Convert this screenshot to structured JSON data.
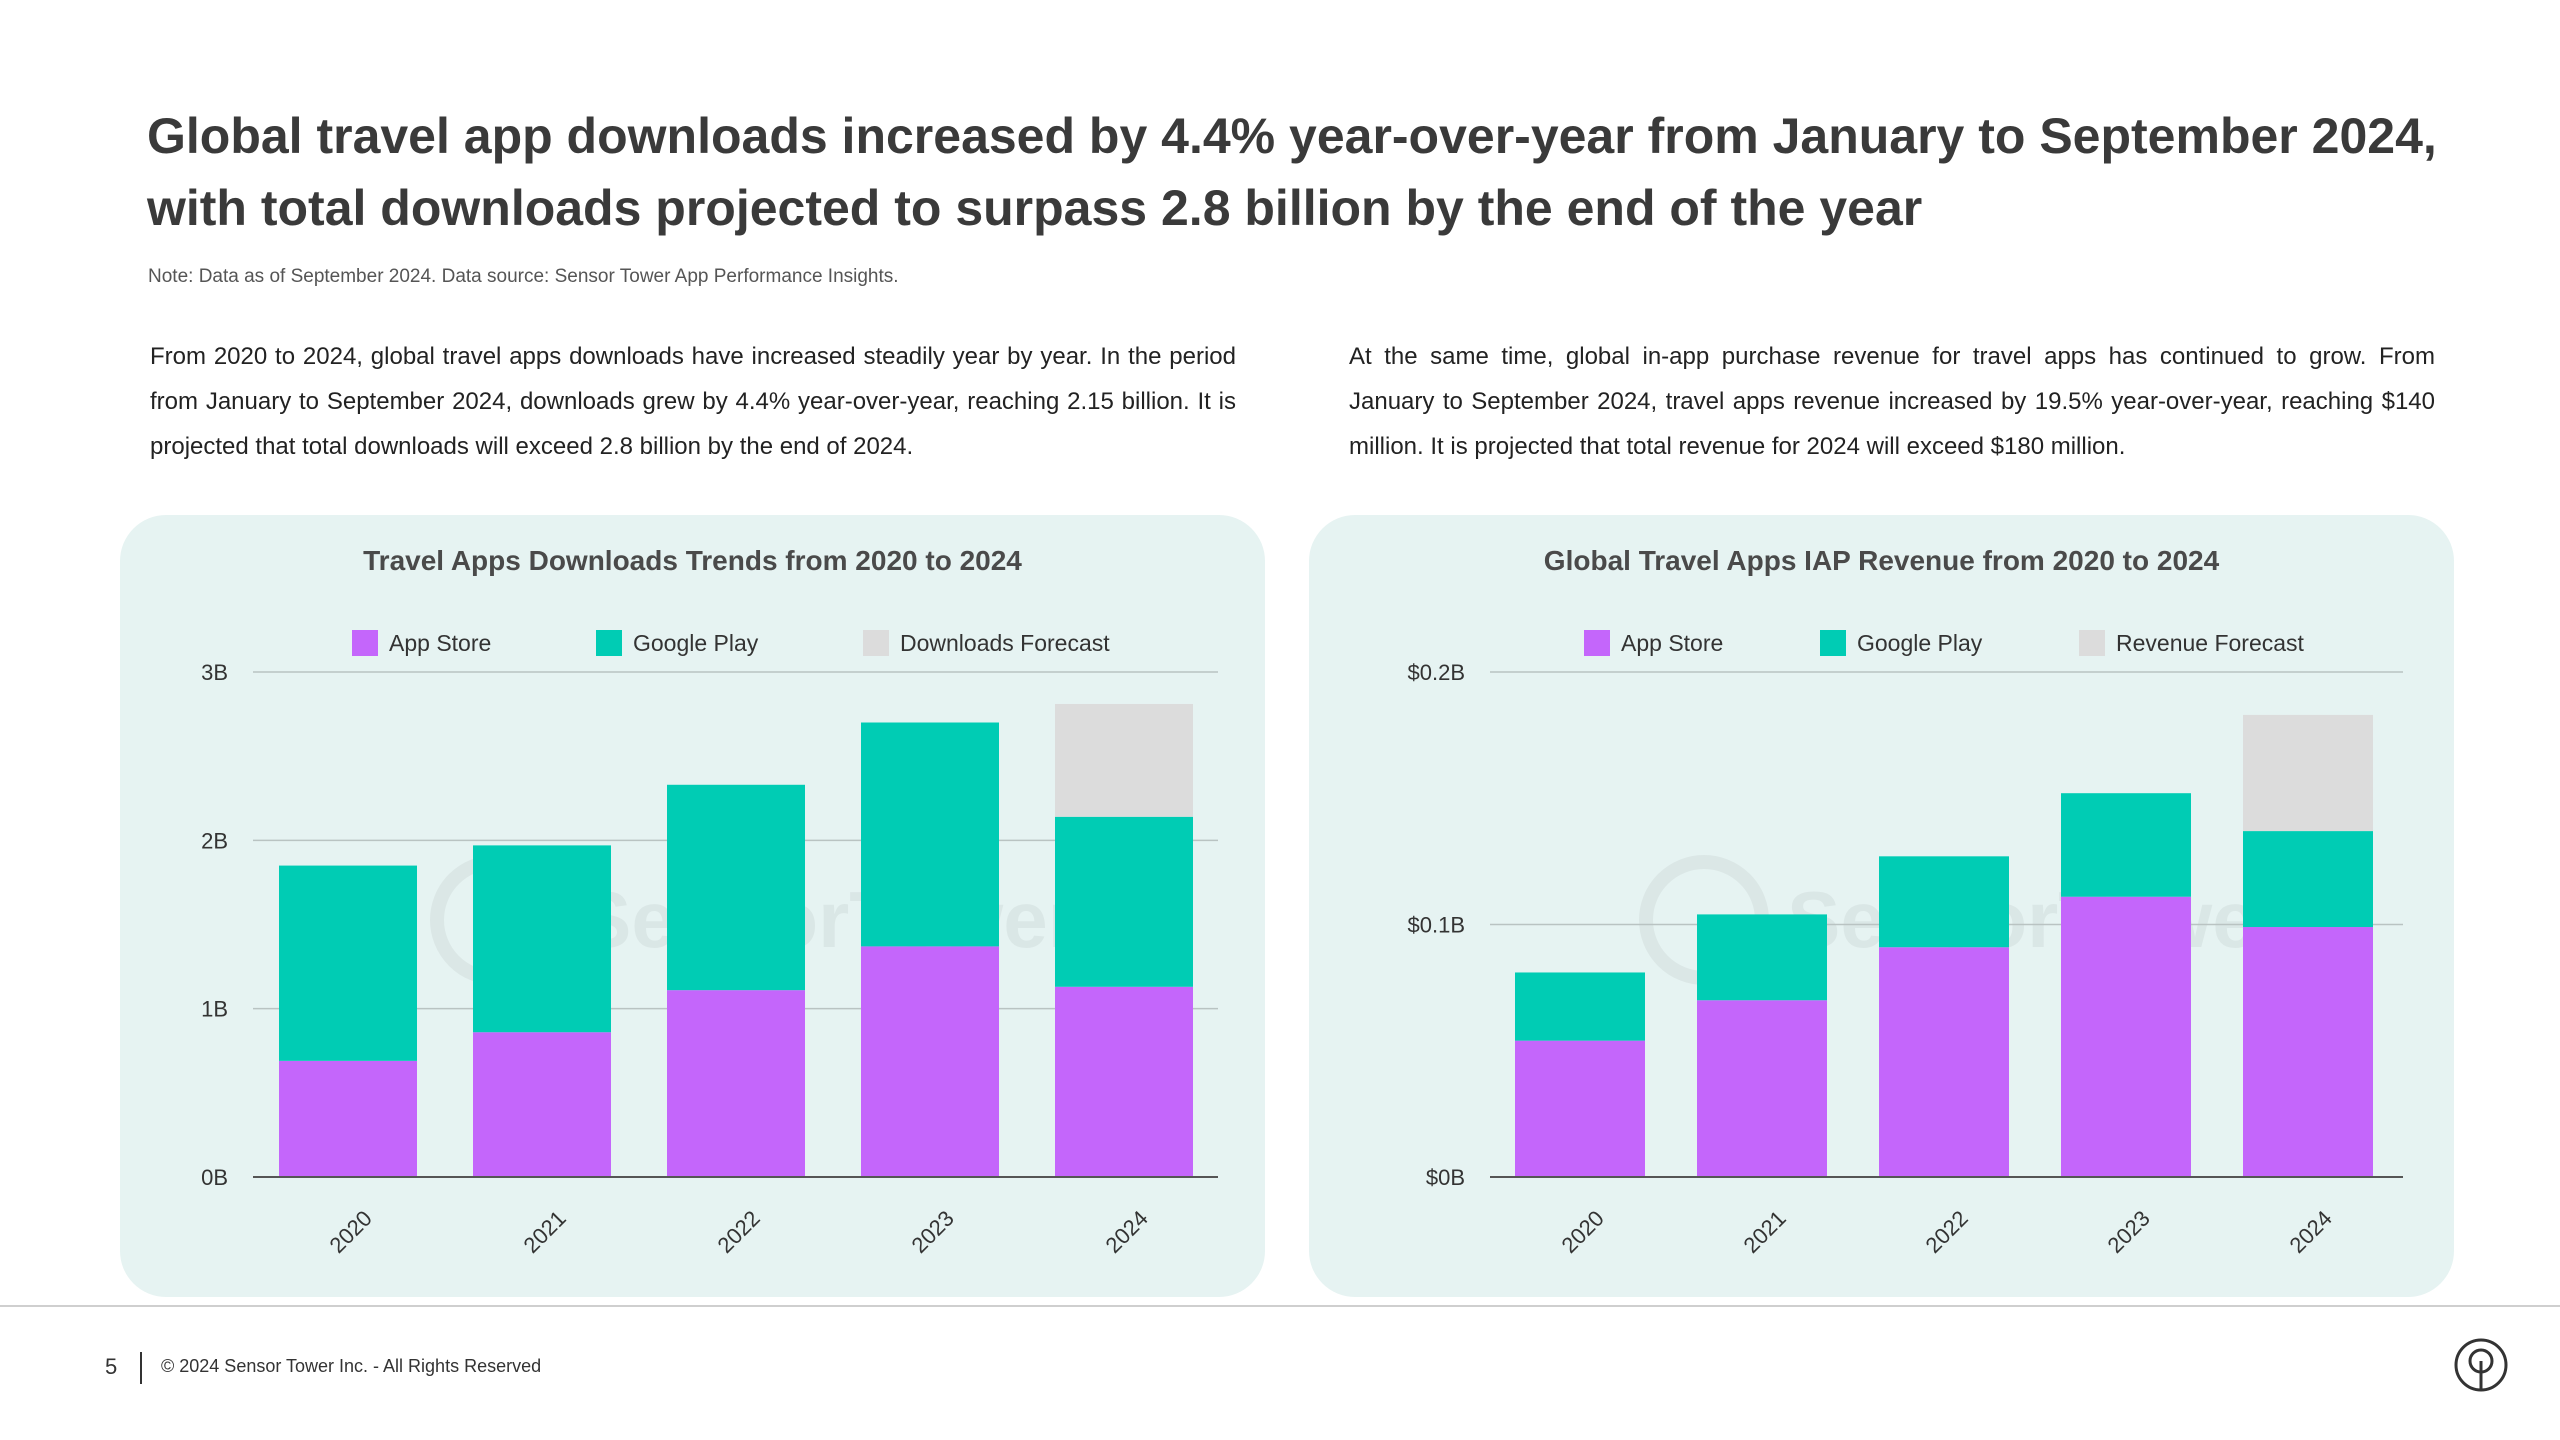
{
  "headline": "Global travel app downloads increased by 4.4% year-over-year from January to September 2024, with total downloads projected to surpass 2.8 billion by the end of the year",
  "note": "Note: Data as of September 2024. Data source: Sensor Tower App Performance Insights.",
  "paragraphs": {
    "left": "From 2020 to 2024, global travel apps downloads have increased steadily year by year. In the period from January to September 2024, downloads grew by 4.4% year-over-year, reaching 2.15 billion. It is projected that total downloads will exceed 2.8 billion by the end of 2024.",
    "right": "At the same time, global in-app purchase revenue for travel apps has continued to grow. From January to September 2024, travel apps revenue increased by 19.5% year-over-year, reaching $140 million. It is projected that total revenue for 2024 will exceed $180 million."
  },
  "colors": {
    "app_store": "#c466fb",
    "google_play": "#00ccb4",
    "forecast": "#dcdcdc",
    "panel_bg": "#e6f3f2",
    "grid": "#b9c3c2"
  },
  "watermark": "SensorTower",
  "footer": {
    "page_number": "5",
    "copyright": "© 2024 Sensor Tower Inc. - All Rights Reserved",
    "logo_icon": "sensor-tower-logo-icon"
  },
  "chart_data": [
    {
      "type": "bar",
      "stacked": true,
      "title": "Travel Apps Downloads Trends from 2020 to 2024",
      "categories": [
        "2020",
        "2021",
        "2022",
        "2023",
        "2024"
      ],
      "series": [
        {
          "name": "App Store",
          "values": [
            0.69,
            0.86,
            1.11,
            1.37,
            1.13
          ]
        },
        {
          "name": "Google Play",
          "values": [
            1.16,
            1.11,
            1.22,
            1.33,
            1.01
          ]
        },
        {
          "name": "Downloads Forecast",
          "values": [
            0,
            0,
            0,
            0,
            0.67
          ]
        }
      ],
      "yticks": [
        "0B",
        "1B",
        "2B",
        "3B"
      ],
      "ylim": [
        0,
        3
      ],
      "legend": "top-center",
      "grid": true
    },
    {
      "type": "bar",
      "stacked": true,
      "title": "Global Travel Apps IAP Revenue from 2020 to 2024",
      "categories": [
        "2020",
        "2021",
        "2022",
        "2023",
        "2024"
      ],
      "series": [
        {
          "name": "App Store",
          "values": [
            0.054,
            0.07,
            0.091,
            0.111,
            0.099
          ]
        },
        {
          "name": "Google Play",
          "values": [
            0.027,
            0.034,
            0.036,
            0.041,
            0.038
          ]
        },
        {
          "name": "Revenue Forecast",
          "values": [
            0,
            0,
            0,
            0,
            0.046
          ]
        }
      ],
      "yticks": [
        "$0B",
        "$0.1B",
        "$0.2B"
      ],
      "ylim": [
        0,
        0.2
      ],
      "legend": "top-center",
      "grid": true
    }
  ]
}
